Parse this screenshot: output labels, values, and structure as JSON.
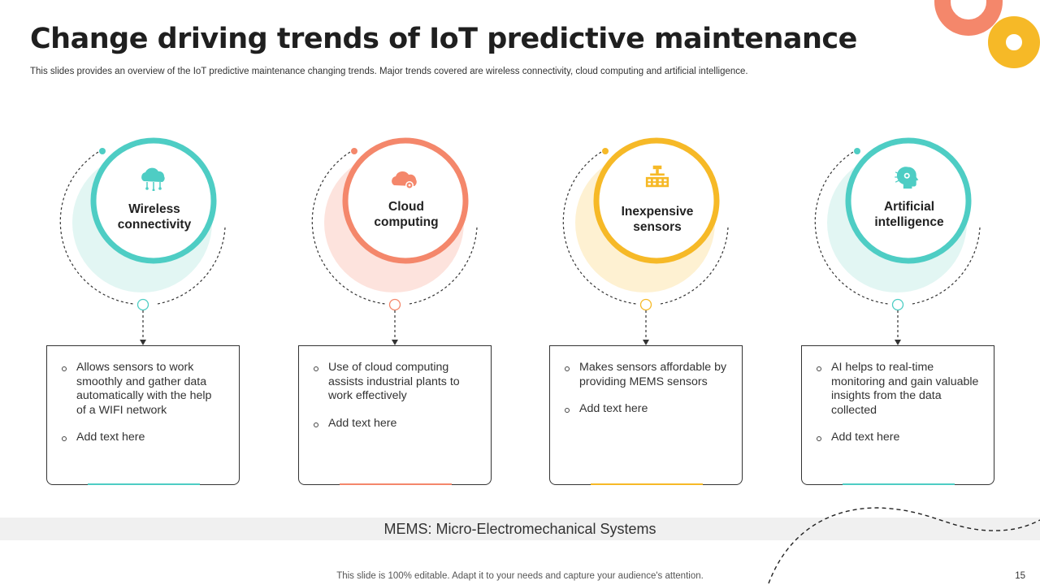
{
  "title": "Change driving trends of IoT predictive maintenance",
  "subtitle": "This slides provides an overview of the IoT predictive maintenance changing trends. Major trends covered are wireless connectivity, cloud computing and artificial intelligence.",
  "colors": {
    "teal": "#4ecdc4",
    "salmon": "#f4876b",
    "yellow": "#f6b927",
    "teal_fill": "#e2f6f3",
    "salmon_fill": "#fde3dd",
    "yellow_fill": "#fef1d2"
  },
  "cards": [
    {
      "heading": [
        "Wireless",
        "connectivity"
      ],
      "icon": "cloud-network-icon",
      "bullets": [
        "Allows sensors to work smoothly and gather data automatically with the help of a WIFI network",
        "Add text here"
      ]
    },
    {
      "heading": [
        "Cloud",
        "computing"
      ],
      "icon": "cloud-computing-icon",
      "bullets": [
        "Use of cloud computing assists industrial plants to work effectively",
        "Add text here"
      ]
    },
    {
      "heading": [
        "Inexpensive",
        "sensors"
      ],
      "icon": "sensor-factory-icon",
      "bullets": [
        "Makes sensors affordable by providing MEMS sensors",
        "Add text here"
      ]
    },
    {
      "heading": [
        "Artificial",
        "intelligence"
      ],
      "icon": "ai-head-icon",
      "bullets": [
        "AI helps to real-time monitoring and gain valuable insights from the data collected",
        "Add text here"
      ]
    }
  ],
  "note": "MEMS: Micro-Electromechanical Systems",
  "footer": "This slide is 100% editable. Adapt it to your needs and capture your audience's attention.",
  "page_number": "15"
}
